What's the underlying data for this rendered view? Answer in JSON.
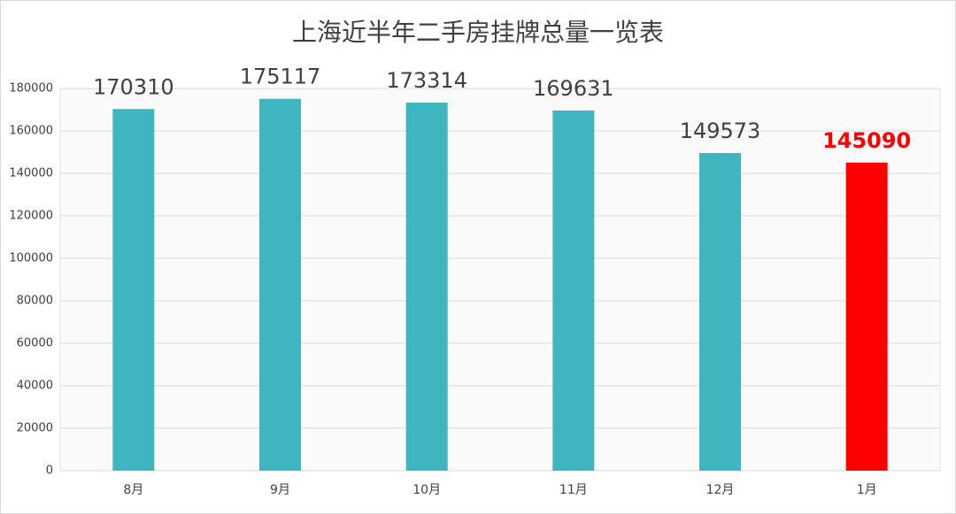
{
  "chart_data": {
    "type": "bar",
    "title": "上海近半年二手房挂牌总量一览表",
    "categories": [
      "8月",
      "9月",
      "10月",
      "11月",
      "12月",
      "1月"
    ],
    "values": [
      170310,
      175117,
      173314,
      169631,
      149573,
      145090
    ],
    "colors": [
      "#3fb5bf",
      "#3fb5bf",
      "#3fb5bf",
      "#3fb5bf",
      "#3fb5bf",
      "#ff0000"
    ],
    "value_label_colors": [
      "#404040",
      "#404040",
      "#404040",
      "#404040",
      "#404040",
      "#ff0000"
    ],
    "ylim": [
      0,
      180000
    ],
    "yticks": [
      0,
      20000,
      40000,
      60000,
      80000,
      100000,
      120000,
      140000,
      160000,
      180000
    ],
    "grid": true
  }
}
